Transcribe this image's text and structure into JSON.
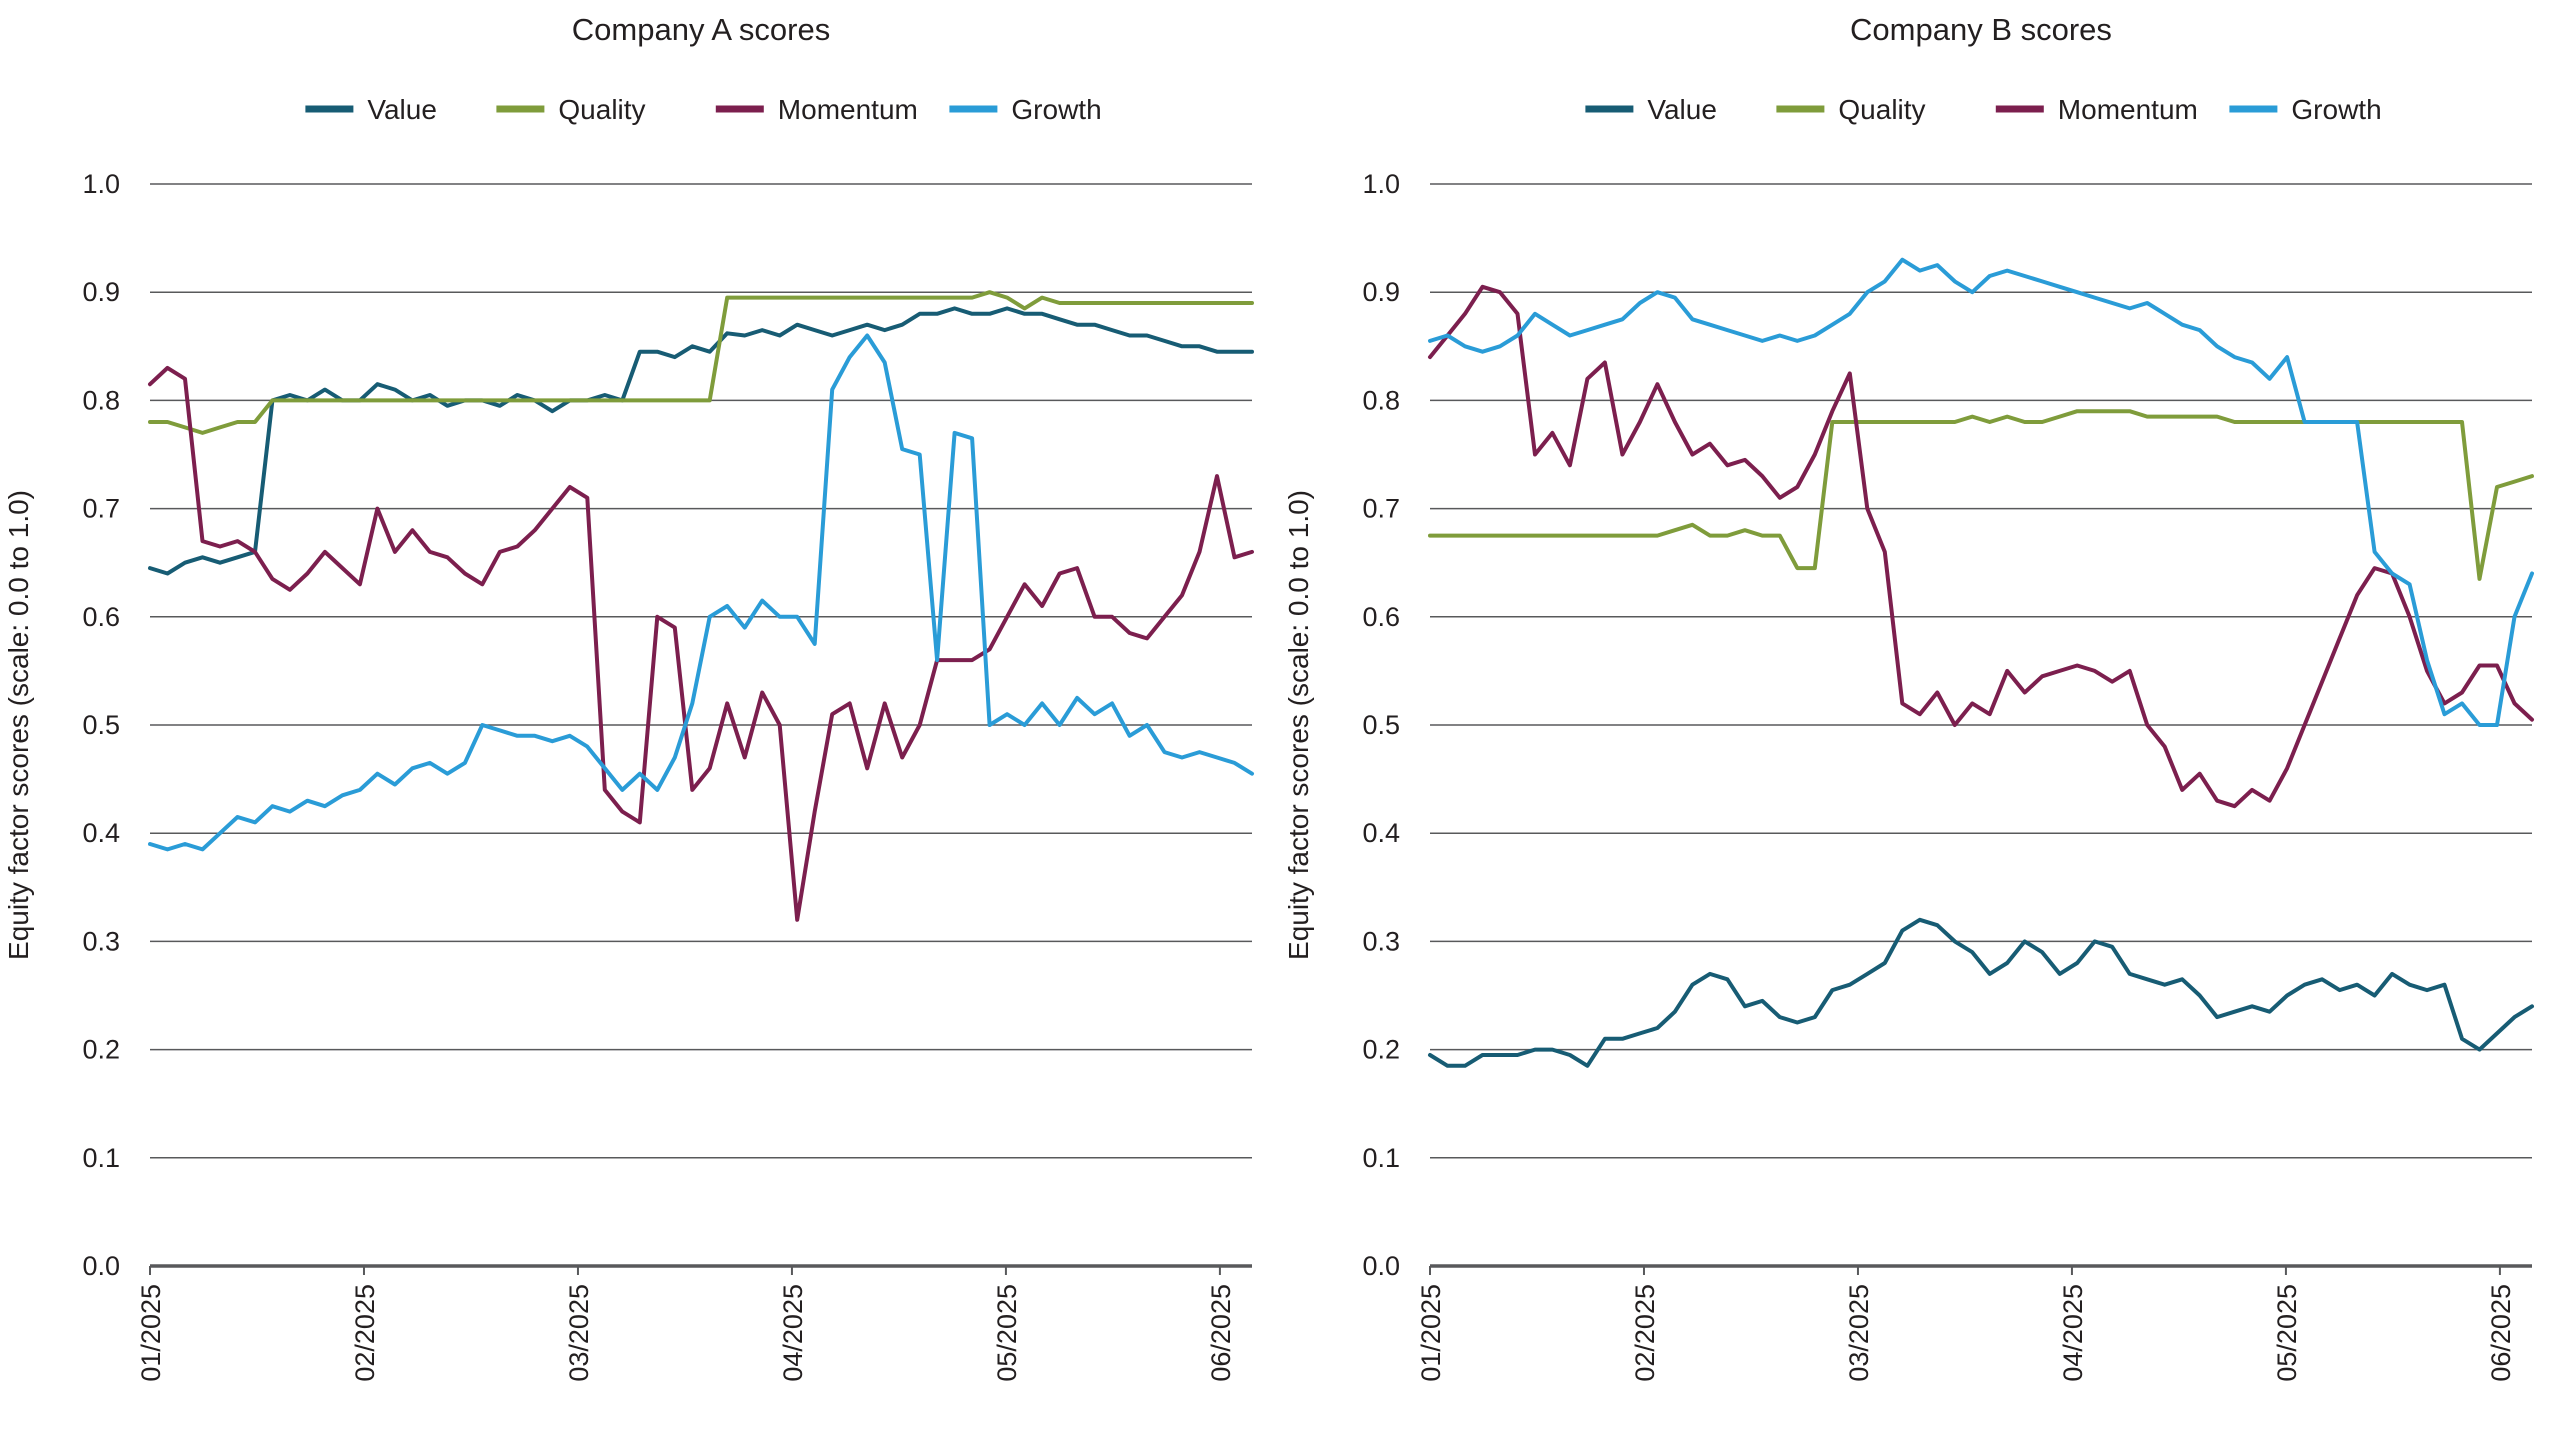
{
  "page": {
    "background": "#ffffff",
    "text_color": "#231f20",
    "grid_color": "#58595b"
  },
  "chart_data": [
    {
      "type": "line",
      "title": "Company A scores",
      "ylabel": "Equity factor scores (scale: 0.0 to 1.0)",
      "xlabel": "",
      "grid": true,
      "legend_position": "top",
      "xlim": [
        0,
        5.15
      ],
      "ylim": [
        0,
        1.0
      ],
      "yticks": [
        0,
        0.1,
        0.2,
        0.3,
        0.4,
        0.5,
        0.6,
        0.7,
        0.8,
        0.9,
        1.0
      ],
      "ytick_labels": [
        "0.0",
        "0.1",
        "0.2",
        "0.3",
        "0.4",
        "0.5",
        "0.6",
        "0.7",
        "0.8",
        "0.9",
        "1.0"
      ],
      "x_ticks": {
        "positions": [
          0,
          1,
          2,
          3,
          4,
          5
        ],
        "labels": [
          "01/2025",
          "02/2025",
          "03/2025",
          "04/2025",
          "05/2025",
          "06/2025"
        ]
      },
      "series": [
        {
          "name": "Value",
          "color": "#175c74",
          "values": [
            0.645,
            0.64,
            0.65,
            0.655,
            0.65,
            0.655,
            0.66,
            0.8,
            0.805,
            0.8,
            0.81,
            0.8,
            0.8,
            0.815,
            0.81,
            0.8,
            0.805,
            0.795,
            0.8,
            0.8,
            0.795,
            0.805,
            0.8,
            0.79,
            0.8,
            0.8,
            0.805,
            0.8,
            0.845,
            0.845,
            0.84,
            0.85,
            0.845,
            0.862,
            0.86,
            0.865,
            0.86,
            0.87,
            0.865,
            0.86,
            0.865,
            0.87,
            0.865,
            0.87,
            0.88,
            0.88,
            0.885,
            0.88,
            0.88,
            0.885,
            0.88,
            0.88,
            0.875,
            0.87,
            0.87,
            0.865,
            0.86,
            0.86,
            0.855,
            0.85,
            0.85,
            0.845,
            0.845,
            0.845
          ]
        },
        {
          "name": "Quality",
          "color": "#7f9c3b",
          "values": [
            0.78,
            0.78,
            0.775,
            0.77,
            0.775,
            0.78,
            0.78,
            0.8,
            0.8,
            0.8,
            0.8,
            0.8,
            0.8,
            0.8,
            0.8,
            0.8,
            0.8,
            0.8,
            0.8,
            0.8,
            0.8,
            0.8,
            0.8,
            0.8,
            0.8,
            0.8,
            0.8,
            0.8,
            0.8,
            0.8,
            0.8,
            0.8,
            0.8,
            0.895,
            0.895,
            0.895,
            0.895,
            0.895,
            0.895,
            0.895,
            0.895,
            0.895,
            0.895,
            0.895,
            0.895,
            0.895,
            0.895,
            0.895,
            0.9,
            0.895,
            0.885,
            0.895,
            0.89,
            0.89,
            0.89,
            0.89,
            0.89,
            0.89,
            0.89,
            0.89,
            0.89,
            0.89,
            0.89,
            0.89
          ]
        },
        {
          "name": "Momentum",
          "color": "#7c1f4e",
          "values": [
            0.815,
            0.83,
            0.82,
            0.67,
            0.665,
            0.67,
            0.66,
            0.635,
            0.625,
            0.64,
            0.66,
            0.645,
            0.63,
            0.7,
            0.66,
            0.68,
            0.66,
            0.655,
            0.64,
            0.63,
            0.66,
            0.665,
            0.68,
            0.7,
            0.72,
            0.71,
            0.44,
            0.42,
            0.41,
            0.6,
            0.59,
            0.44,
            0.46,
            0.52,
            0.47,
            0.53,
            0.5,
            0.32,
            0.42,
            0.51,
            0.52,
            0.46,
            0.52,
            0.47,
            0.5,
            0.56,
            0.56,
            0.56,
            0.57,
            0.6,
            0.63,
            0.61,
            0.64,
            0.645,
            0.6,
            0.6,
            0.585,
            0.58,
            0.6,
            0.62,
            0.66,
            0.73,
            0.655,
            0.66
          ]
        },
        {
          "name": "Growth",
          "color": "#2a9cd7",
          "values": [
            0.39,
            0.385,
            0.39,
            0.385,
            0.4,
            0.415,
            0.41,
            0.425,
            0.42,
            0.43,
            0.425,
            0.435,
            0.44,
            0.455,
            0.445,
            0.46,
            0.465,
            0.455,
            0.465,
            0.5,
            0.495,
            0.49,
            0.49,
            0.485,
            0.49,
            0.48,
            0.46,
            0.44,
            0.455,
            0.44,
            0.47,
            0.52,
            0.6,
            0.61,
            0.59,
            0.615,
            0.6,
            0.6,
            0.575,
            0.81,
            0.84,
            0.86,
            0.835,
            0.755,
            0.75,
            0.56,
            0.77,
            0.765,
            0.5,
            0.51,
            0.5,
            0.52,
            0.5,
            0.525,
            0.51,
            0.52,
            0.49,
            0.5,
            0.475,
            0.47,
            0.475,
            0.47,
            0.465,
            0.455
          ]
        }
      ]
    },
    {
      "type": "line",
      "title": "Company B scores",
      "ylabel": "Equity factor scores (scale: 0.0 to 1.0)",
      "xlabel": "",
      "grid": true,
      "legend_position": "top",
      "xlim": [
        0,
        5.15
      ],
      "ylim": [
        0,
        1.0
      ],
      "yticks": [
        0,
        0.1,
        0.2,
        0.3,
        0.4,
        0.5,
        0.6,
        0.7,
        0.8,
        0.9,
        1.0
      ],
      "ytick_labels": [
        "0.0",
        "0.1",
        "0.2",
        "0.3",
        "0.4",
        "0.5",
        "0.6",
        "0.7",
        "0.8",
        "0.9",
        "1.0"
      ],
      "x_ticks": {
        "positions": [
          0,
          1,
          2,
          3,
          4,
          5
        ],
        "labels": [
          "01/2025",
          "02/2025",
          "03/2025",
          "04/2025",
          "05/2025",
          "06/2025"
        ]
      },
      "series": [
        {
          "name": "Value",
          "color": "#175c74",
          "values": [
            0.195,
            0.185,
            0.185,
            0.195,
            0.195,
            0.195,
            0.2,
            0.2,
            0.195,
            0.185,
            0.21,
            0.21,
            0.215,
            0.22,
            0.235,
            0.26,
            0.27,
            0.265,
            0.24,
            0.245,
            0.23,
            0.225,
            0.23,
            0.255,
            0.26,
            0.27,
            0.28,
            0.31,
            0.32,
            0.315,
            0.3,
            0.29,
            0.27,
            0.28,
            0.3,
            0.29,
            0.27,
            0.28,
            0.3,
            0.295,
            0.27,
            0.265,
            0.26,
            0.265,
            0.25,
            0.23,
            0.235,
            0.24,
            0.235,
            0.25,
            0.26,
            0.265,
            0.255,
            0.26,
            0.25,
            0.27,
            0.26,
            0.255,
            0.26,
            0.21,
            0.2,
            0.215,
            0.23,
            0.24
          ]
        },
        {
          "name": "Quality",
          "color": "#7f9c3b",
          "values": [
            0.675,
            0.675,
            0.675,
            0.675,
            0.675,
            0.675,
            0.675,
            0.675,
            0.675,
            0.675,
            0.675,
            0.675,
            0.675,
            0.675,
            0.68,
            0.685,
            0.675,
            0.675,
            0.68,
            0.675,
            0.675,
            0.645,
            0.645,
            0.78,
            0.78,
            0.78,
            0.78,
            0.78,
            0.78,
            0.78,
            0.78,
            0.785,
            0.78,
            0.785,
            0.78,
            0.78,
            0.785,
            0.79,
            0.79,
            0.79,
            0.79,
            0.785,
            0.785,
            0.785,
            0.785,
            0.785,
            0.78,
            0.78,
            0.78,
            0.78,
            0.78,
            0.78,
            0.78,
            0.78,
            0.78,
            0.78,
            0.78,
            0.78,
            0.78,
            0.78,
            0.635,
            0.72,
            0.725,
            0.73
          ]
        },
        {
          "name": "Momentum",
          "color": "#7c1f4e",
          "values": [
            0.84,
            0.86,
            0.88,
            0.905,
            0.9,
            0.88,
            0.75,
            0.77,
            0.74,
            0.82,
            0.835,
            0.75,
            0.78,
            0.815,
            0.78,
            0.75,
            0.76,
            0.74,
            0.745,
            0.73,
            0.71,
            0.72,
            0.75,
            0.79,
            0.825,
            0.7,
            0.66,
            0.52,
            0.51,
            0.53,
            0.5,
            0.52,
            0.51,
            0.55,
            0.53,
            0.545,
            0.55,
            0.555,
            0.55,
            0.54,
            0.55,
            0.5,
            0.48,
            0.44,
            0.455,
            0.43,
            0.425,
            0.44,
            0.43,
            0.46,
            0.5,
            0.54,
            0.58,
            0.62,
            0.645,
            0.64,
            0.6,
            0.55,
            0.52,
            0.53,
            0.555,
            0.555,
            0.52,
            0.505
          ]
        },
        {
          "name": "Growth",
          "color": "#2a9cd7",
          "values": [
            0.855,
            0.86,
            0.85,
            0.845,
            0.85,
            0.86,
            0.88,
            0.87,
            0.86,
            0.865,
            0.87,
            0.875,
            0.89,
            0.9,
            0.895,
            0.875,
            0.87,
            0.865,
            0.86,
            0.855,
            0.86,
            0.855,
            0.86,
            0.87,
            0.88,
            0.9,
            0.91,
            0.93,
            0.92,
            0.925,
            0.91,
            0.9,
            0.915,
            0.92,
            0.915,
            0.91,
            0.905,
            0.9,
            0.895,
            0.89,
            0.885,
            0.89,
            0.88,
            0.87,
            0.865,
            0.85,
            0.84,
            0.835,
            0.82,
            0.84,
            0.78,
            0.78,
            0.78,
            0.78,
            0.66,
            0.64,
            0.63,
            0.56,
            0.51,
            0.52,
            0.5,
            0.5,
            0.6,
            0.64
          ]
        }
      ]
    }
  ]
}
